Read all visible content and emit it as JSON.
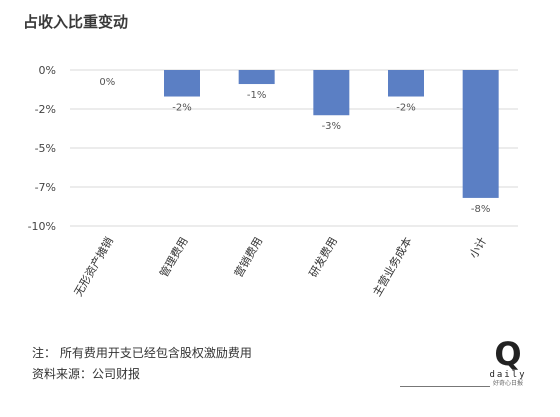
{
  "title": "占收入比重变动",
  "chart_data": {
    "type": "bar",
    "title": "占收入比重变动",
    "categories": [
      "无形资产摊销",
      "管理费用",
      "营销费用",
      "研发费用",
      "主营业务成本",
      "小计"
    ],
    "values": [
      0,
      -2,
      -1,
      -3,
      -2,
      -8
    ],
    "values_precise": [
      0,
      -1.7,
      -0.9,
      -2.9,
      -1.7,
      -8.2
    ],
    "data_labels": [
      "0%",
      "-2%",
      "-1%",
      "-3%",
      "-2%",
      "-8%"
    ],
    "yticks": [
      "0%",
      "-2%",
      "-5%",
      "-7%",
      "-10%"
    ],
    "ylim": [
      -10,
      0
    ],
    "xlabel": "",
    "ylabel": "",
    "grid": true,
    "bar_color": "#5b7fc4"
  },
  "notes": {
    "note": "注：  所有费用开支已经包含股权激励费用",
    "source": "资料来源：公司财报"
  },
  "logo": {
    "mark": "Q",
    "word": "daily",
    "sub": "好奇心日报"
  }
}
